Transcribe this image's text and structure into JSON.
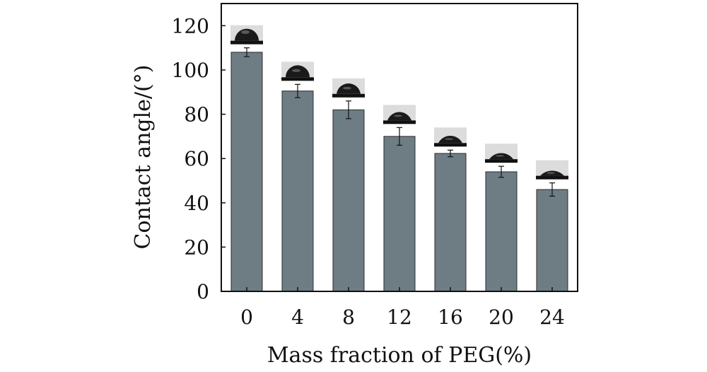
{
  "chart_data": {
    "type": "bar",
    "title": "",
    "xlabel": "Mass fraction of PEG(%)",
    "ylabel": "Contact angle/(°)",
    "categories": [
      "0",
      "4",
      "8",
      "12",
      "16",
      "20",
      "24"
    ],
    "values": [
      108,
      90.5,
      82,
      70,
      62.3,
      54,
      46
    ],
    "errors": [
      2,
      3,
      4,
      4,
      1.5,
      2.5,
      3
    ],
    "ylim": [
      0,
      130
    ],
    "yticks": [
      0,
      20,
      40,
      60,
      80,
      100,
      120
    ],
    "grid": false,
    "legend": "none",
    "droplet_images": true,
    "colors": {
      "bar": "#6e7d84",
      "bar_edge": "#2b2b2b",
      "axis": "#111111",
      "droplet": "#1a1a1a"
    }
  }
}
